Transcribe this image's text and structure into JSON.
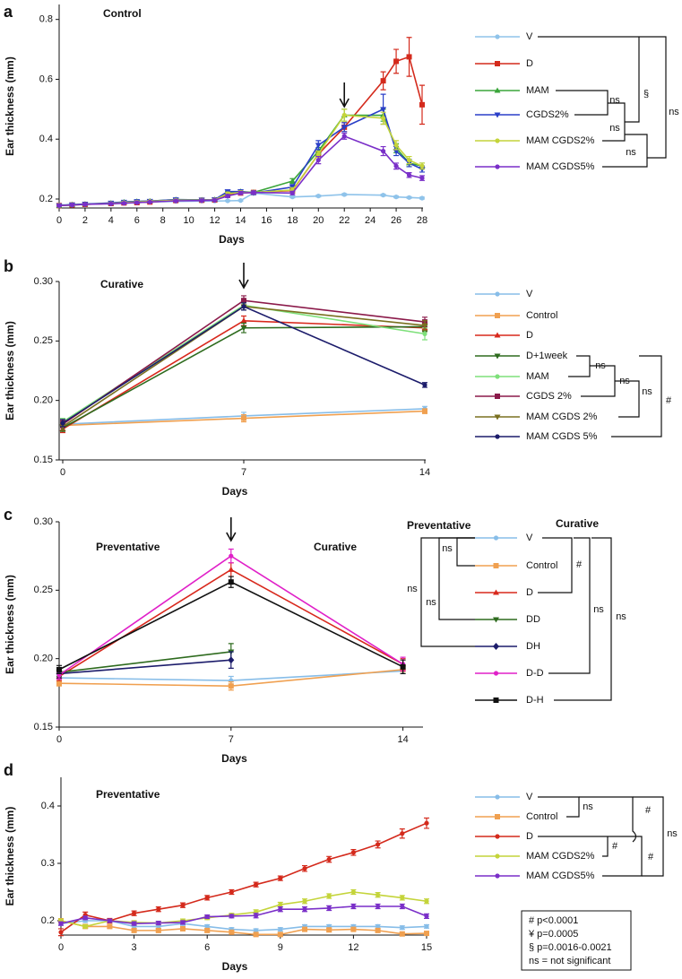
{
  "chart_data": [
    {
      "type": "line",
      "panel": "a",
      "annotations": [
        "Control"
      ],
      "xlabel": "Days",
      "ylabel": "Ear thickness (mm)",
      "xlim": [
        0,
        28
      ],
      "ylim": [
        0.17,
        0.85
      ],
      "xticks": [
        0,
        2,
        4,
        6,
        8,
        10,
        12,
        14,
        16,
        18,
        20,
        22,
        24,
        26,
        28
      ],
      "yticks": [
        0.2,
        0.4,
        0.6,
        0.8
      ],
      "arrow_at": 22,
      "x": [
        0,
        1,
        2,
        4,
        5,
        6,
        7,
        9,
        11,
        12,
        13,
        14,
        15,
        18,
        20,
        22,
        25,
        26,
        27,
        28
      ],
      "series": [
        {
          "name": "V",
          "color": "#8fc3ea",
          "marker": "circle",
          "values": [
            0.18,
            0.182,
            0.183,
            0.185,
            0.187,
            0.188,
            0.19,
            0.192,
            0.193,
            0.193,
            0.194,
            0.195,
            0.22,
            0.207,
            0.21,
            0.215,
            0.213,
            0.207,
            0.205,
            0.203
          ],
          "errors": [
            0.002,
            0.002,
            0.002,
            0.002,
            0.002,
            0.002,
            0.002,
            0.002,
            0.002,
            0.002,
            0.002,
            0.002,
            0.004,
            0.003,
            0.003,
            0.003,
            0.003,
            0.003,
            0.003,
            0.003
          ]
        },
        {
          "name": "D",
          "color": "#d42a1c",
          "marker": "square",
          "values": [
            0.178,
            0.18,
            0.182,
            0.185,
            0.187,
            0.188,
            0.19,
            0.195,
            0.196,
            0.197,
            0.213,
            0.22,
            0.222,
            0.228,
            0.35,
            0.44,
            0.595,
            0.66,
            0.675,
            0.515
          ],
          "errors": [
            0.003,
            0.003,
            0.003,
            0.003,
            0.003,
            0.003,
            0.003,
            0.003,
            0.003,
            0.003,
            0.005,
            0.005,
            0.005,
            0.008,
            0.01,
            0.015,
            0.03,
            0.04,
            0.065,
            0.065
          ]
        },
        {
          "name": "MAM",
          "color": "#3aa53a",
          "marker": "triangle",
          "values": [
            0.178,
            0.181,
            0.183,
            0.186,
            0.19,
            0.192,
            0.193,
            0.198,
            0.197,
            0.198,
            0.22,
            0.225,
            0.222,
            0.26,
            0.36,
            0.48,
            0.48,
            0.37,
            0.32,
            0.31
          ],
          "errors": [
            0.003,
            0.003,
            0.003,
            0.003,
            0.003,
            0.003,
            0.003,
            0.003,
            0.003,
            0.003,
            0.005,
            0.005,
            0.005,
            0.008,
            0.012,
            0.02,
            0.02,
            0.015,
            0.012,
            0.01
          ]
        },
        {
          "name": "CGDS2%",
          "color": "#2a3fc8",
          "marker": "triangle-down",
          "values": [
            0.178,
            0.181,
            0.183,
            0.187,
            0.19,
            0.192,
            0.193,
            0.198,
            0.197,
            0.198,
            0.225,
            0.225,
            0.22,
            0.24,
            0.38,
            0.44,
            0.5,
            0.36,
            0.32,
            0.3
          ],
          "errors": [
            0.003,
            0.003,
            0.003,
            0.003,
            0.003,
            0.003,
            0.003,
            0.003,
            0.003,
            0.003,
            0.005,
            0.005,
            0.005,
            0.008,
            0.015,
            0.015,
            0.05,
            0.015,
            0.012,
            0.01
          ]
        },
        {
          "name": "MAM CGDS2%",
          "color": "#c4d43a",
          "marker": "circle",
          "values": [
            0.178,
            0.18,
            0.182,
            0.185,
            0.188,
            0.19,
            0.192,
            0.196,
            0.196,
            0.197,
            0.218,
            0.222,
            0.222,
            0.23,
            0.35,
            0.48,
            0.47,
            0.38,
            0.33,
            0.31
          ],
          "errors": [
            0.003,
            0.003,
            0.003,
            0.003,
            0.003,
            0.003,
            0.003,
            0.003,
            0.003,
            0.003,
            0.005,
            0.005,
            0.005,
            0.008,
            0.01,
            0.02,
            0.02,
            0.015,
            0.012,
            0.01
          ]
        },
        {
          "name": "MAM CGDS5%",
          "color": "#7a2fc8",
          "marker": "circle",
          "values": [
            0.178,
            0.18,
            0.182,
            0.184,
            0.186,
            0.188,
            0.19,
            0.194,
            0.195,
            0.196,
            0.21,
            0.22,
            0.222,
            0.22,
            0.33,
            0.41,
            0.36,
            0.31,
            0.28,
            0.27
          ],
          "errors": [
            0.003,
            0.003,
            0.003,
            0.003,
            0.003,
            0.003,
            0.003,
            0.003,
            0.003,
            0.003,
            0.005,
            0.005,
            0.005,
            0.006,
            0.012,
            0.01,
            0.015,
            0.01,
            0.008,
            0.008
          ]
        }
      ],
      "brackets": [
        "ns",
        "§",
        "ns",
        "ns",
        "ns"
      ]
    },
    {
      "type": "line",
      "panel": "b",
      "annotations": [
        "Curative"
      ],
      "xlabel": "Days",
      "ylabel": "Ear thickness (mm)",
      "xlim": [
        0,
        14
      ],
      "ylim": [
        0.15,
        0.3
      ],
      "xticks": [
        0,
        7,
        14
      ],
      "yticks": [
        {
          "value": 0.15,
          "label": "0.15"
        },
        {
          "value": 0.2,
          "label": "0.20"
        },
        {
          "value": 0.25,
          "label": "0.25"
        },
        {
          "value": 0.3,
          "label": "0.30"
        }
      ],
      "arrow_at": 7,
      "x": [
        0,
        7,
        14
      ],
      "series": [
        {
          "name": "V",
          "color": "#87bde8",
          "marker": "circle",
          "values": [
            0.18,
            0.187,
            0.193
          ],
          "errors": [
            0.002,
            0.003,
            0.002
          ]
        },
        {
          "name": "Control",
          "color": "#f0a050",
          "marker": "square",
          "values": [
            0.179,
            0.185,
            0.191
          ],
          "errors": [
            0.002,
            0.003,
            0.002
          ]
        },
        {
          "name": "D",
          "color": "#d8281c",
          "marker": "triangle",
          "values": [
            0.176,
            0.267,
            0.261
          ],
          "errors": [
            0.003,
            0.004,
            0.003
          ]
        },
        {
          "name": "D+1week",
          "color": "#2e6b1e",
          "marker": "triangle-down",
          "values": [
            0.177,
            0.261,
            0.262
          ],
          "errors": [
            0.003,
            0.004,
            0.004
          ]
        },
        {
          "name": "MAM",
          "color": "#7ee07a",
          "marker": "circle",
          "values": [
            0.182,
            0.28,
            0.256
          ],
          "errors": [
            0.003,
            0.004,
            0.005
          ]
        },
        {
          "name": "CGDS 2%",
          "color": "#8b1a4a",
          "marker": "square",
          "values": [
            0.18,
            0.284,
            0.266
          ],
          "errors": [
            0.003,
            0.004,
            0.004
          ]
        },
        {
          "name": "MAM CGDS 2%",
          "color": "#7a7020",
          "marker": "triangle-down",
          "values": [
            0.178,
            0.279,
            0.263
          ],
          "errors": [
            0.003,
            0.003,
            0.004
          ]
        },
        {
          "name": "MAM CGDS 5%",
          "color": "#1c1c6b",
          "marker": "circle",
          "values": [
            0.181,
            0.279,
            0.213
          ],
          "errors": [
            0.003,
            0.003,
            0.002
          ]
        }
      ],
      "brackets": [
        "ns",
        "ns",
        "ns",
        "#"
      ]
    },
    {
      "type": "line",
      "panel": "c",
      "annotations": [
        "Preventative",
        "Curative",
        "Preventative",
        "Curative"
      ],
      "xlabel": "Days",
      "ylabel": "Ear thickness (mm)",
      "xlim": [
        0,
        15
      ],
      "ylim": [
        0.15,
        0.3
      ],
      "xticks": [
        0,
        7,
        14
      ],
      "yticks": [
        {
          "value": 0.15,
          "label": "0.15"
        },
        {
          "value": 0.2,
          "label": "0.20"
        },
        {
          "value": 0.25,
          "label": "0.25"
        },
        {
          "value": 0.3,
          "label": "0.30"
        }
      ],
      "arrow_at": 7,
      "x": [
        0,
        7,
        14
      ],
      "series": [
        {
          "name": "V",
          "color": "#87bde8",
          "marker": "circle",
          "values": [
            0.186,
            0.184,
            0.191
          ],
          "errors": [
            0.002,
            0.003,
            0.002
          ]
        },
        {
          "name": "Control",
          "color": "#f0a050",
          "marker": "square",
          "values": [
            0.182,
            0.18,
            0.192
          ],
          "errors": [
            0.002,
            0.003,
            0.003
          ]
        },
        {
          "name": "D",
          "color": "#d8281c",
          "marker": "triangle",
          "values": [
            0.187,
            0.265,
            0.196
          ],
          "errors": [
            0.003,
            0.005,
            0.004
          ]
        },
        {
          "name": "DD",
          "color": "#2e6b1e",
          "marker": "triangle-down",
          "values": [
            0.19,
            0.205,
            null
          ],
          "errors": [
            0.003,
            0.006,
            null
          ]
        },
        {
          "name": "DH",
          "color": "#1c1c6b",
          "marker": "diamond",
          "values": [
            0.189,
            0.199,
            null
          ],
          "errors": [
            0.003,
            0.006,
            null
          ]
        },
        {
          "name": "D-D",
          "color": "#e020c8",
          "marker": "circle",
          "values": [
            0.188,
            0.275,
            0.196
          ],
          "errors": [
            0.003,
            0.005,
            0.005
          ]
        },
        {
          "name": "D-H",
          "color": "#111111",
          "marker": "square",
          "values": [
            0.192,
            0.256,
            0.194
          ],
          "errors": [
            0.003,
            0.004,
            0.005
          ]
        }
      ],
      "brackets": [
        "ns",
        "ns",
        "ns",
        "#",
        "ns",
        "ns"
      ]
    },
    {
      "type": "line",
      "panel": "d",
      "annotations": [
        "Preventative"
      ],
      "xlabel": "Days",
      "ylabel": "Ear thickness (mm)",
      "xlim": [
        0,
        15
      ],
      "ylim": [
        0.175,
        0.45
      ],
      "xticks": [
        0,
        3,
        6,
        9,
        12,
        15
      ],
      "yticks": [
        0.2,
        0.3,
        0.4
      ],
      "x": [
        0,
        1,
        2,
        3,
        4,
        5,
        6,
        7,
        8,
        9,
        10,
        11,
        12,
        13,
        14,
        15
      ],
      "series": [
        {
          "name": "V",
          "color": "#87bde8",
          "marker": "circle",
          "values": [
            0.195,
            0.2,
            0.2,
            0.19,
            0.19,
            0.195,
            0.19,
            0.185,
            0.183,
            0.185,
            0.19,
            0.19,
            0.19,
            0.19,
            0.188,
            0.19
          ],
          "errors": [
            0.003,
            0.003,
            0.003,
            0.003,
            0.003,
            0.003,
            0.003,
            0.003,
            0.003,
            0.003,
            0.003,
            0.003,
            0.003,
            0.003,
            0.003,
            0.003
          ]
        },
        {
          "name": "Control",
          "color": "#f0a050",
          "marker": "square",
          "values": [
            0.2,
            0.19,
            0.19,
            0.183,
            0.183,
            0.186,
            0.183,
            0.18,
            0.176,
            0.176,
            0.185,
            0.184,
            0.185,
            0.183,
            0.177,
            0.178
          ],
          "errors": [
            0.003,
            0.003,
            0.003,
            0.003,
            0.003,
            0.003,
            0.003,
            0.003,
            0.003,
            0.003,
            0.003,
            0.003,
            0.003,
            0.003,
            0.003,
            0.003
          ]
        },
        {
          "name": "D",
          "color": "#d42a1c",
          "marker": "circle",
          "values": [
            0.18,
            0.21,
            0.2,
            0.213,
            0.22,
            0.227,
            0.24,
            0.25,
            0.263,
            0.274,
            0.291,
            0.307,
            0.319,
            0.333,
            0.352,
            0.37
          ],
          "errors": [
            0.006,
            0.005,
            0.004,
            0.004,
            0.004,
            0.004,
            0.004,
            0.004,
            0.004,
            0.004,
            0.005,
            0.005,
            0.005,
            0.006,
            0.008,
            0.009
          ]
        },
        {
          "name": "MAM CGDS2%",
          "color": "#c4d43a",
          "marker": "circle",
          "values": [
            0.2,
            0.19,
            0.2,
            0.197,
            0.196,
            0.2,
            0.205,
            0.21,
            0.215,
            0.228,
            0.234,
            0.243,
            0.25,
            0.245,
            0.24,
            0.234
          ],
          "errors": [
            0.003,
            0.003,
            0.003,
            0.003,
            0.003,
            0.003,
            0.003,
            0.003,
            0.004,
            0.004,
            0.004,
            0.004,
            0.004,
            0.004,
            0.004,
            0.004
          ]
        },
        {
          "name": "MAM CGDS5%",
          "color": "#7a2fc8",
          "marker": "circle",
          "values": [
            0.195,
            0.205,
            0.2,
            0.195,
            0.196,
            0.197,
            0.207,
            0.208,
            0.209,
            0.22,
            0.22,
            0.222,
            0.225,
            0.225,
            0.225,
            0.208
          ],
          "errors": [
            0.003,
            0.003,
            0.003,
            0.003,
            0.003,
            0.003,
            0.003,
            0.003,
            0.004,
            0.004,
            0.004,
            0.004,
            0.004,
            0.004,
            0.004,
            0.004
          ]
        }
      ],
      "brackets": [
        "ns",
        "#",
        "#",
        "#",
        "ns"
      ]
    }
  ],
  "legend_note": [
    "# p<0.0001",
    "¥ p=0.0005",
    "§  p=0.0016-0.0021",
    "ns = not significant"
  ]
}
